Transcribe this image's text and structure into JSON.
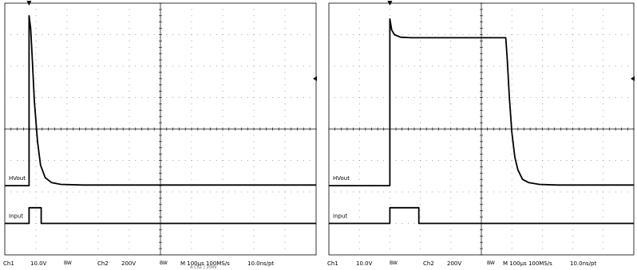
{
  "chart_data": [
    {
      "type": "line",
      "title": "",
      "xlabel": "",
      "ylabel": "",
      "divisions": {
        "x": 10,
        "y": 8
      },
      "xlim": [
        0,
        10
      ],
      "ylim": [
        0,
        8
      ],
      "grid": true,
      "trigger_marker": {
        "x": 0.78
      },
      "right_marker": {
        "y": 5.6
      },
      "series": [
        {
          "name": "HVout",
          "x": [
            0,
            0.78,
            0.78,
            0.83,
            0.88,
            0.95,
            1.05,
            1.15,
            1.3,
            1.5,
            1.8,
            2.5,
            10
          ],
          "y": [
            2.2,
            2.2,
            7.6,
            7.2,
            6.3,
            4.9,
            3.6,
            2.85,
            2.45,
            2.3,
            2.24,
            2.22,
            2.22
          ]
        },
        {
          "name": "Input",
          "x": [
            0,
            0.78,
            0.78,
            1.17,
            1.17,
            10
          ],
          "y": [
            1.0,
            1.0,
            1.5,
            1.5,
            1.0,
            1.0
          ]
        }
      ],
      "trace_labels": [
        {
          "series": "HVout",
          "text": "HVout"
        },
        {
          "series": "Input",
          "text": "Input"
        }
      ],
      "status": {
        "ch1": "Ch1",
        "ch1_scale": "10.0V",
        "bw1": "BW",
        "ch2": "Ch2",
        "ch2_scale": "200V",
        "bw2": "BW",
        "timebase": "M  100µs  100MS/s",
        "resolution": "10.0ns/pt",
        "overlap": "A  Ch2  ∫  204V"
      }
    },
    {
      "type": "line",
      "title": "",
      "xlabel": "",
      "ylabel": "",
      "divisions": {
        "x": 10,
        "y": 8
      },
      "xlim": [
        0,
        10
      ],
      "ylim": [
        0,
        8
      ],
      "grid": true,
      "trigger_marker": {
        "x": 2.0
      },
      "right_marker": {
        "y": 5.6
      },
      "series": [
        {
          "name": "HVout",
          "x": [
            0,
            2.0,
            2.0,
            2.06,
            2.15,
            2.35,
            2.7,
            3.2,
            5.8,
            5.85,
            5.92,
            6.0,
            6.1,
            6.2,
            6.35,
            6.55,
            6.9,
            7.5,
            10
          ],
          "y": [
            2.2,
            2.2,
            7.5,
            7.15,
            7.0,
            6.92,
            6.9,
            6.9,
            6.9,
            6.2,
            5.0,
            3.9,
            3.1,
            2.7,
            2.4,
            2.3,
            2.24,
            2.22,
            2.22
          ]
        },
        {
          "name": "Input",
          "x": [
            0,
            2.0,
            2.0,
            2.95,
            2.95,
            10
          ],
          "y": [
            1.0,
            1.0,
            1.5,
            1.5,
            1.0,
            1.0
          ]
        }
      ],
      "trace_labels": [
        {
          "series": "HVout",
          "text": "HVout"
        },
        {
          "series": "Input",
          "text": "Input"
        }
      ],
      "status": {
        "ch1": "Ch1",
        "ch1_scale": "10.0V",
        "bw1": "BW",
        "ch2": "Ch2",
        "ch2_scale": "200V",
        "bw2": "BW",
        "timebase": "M 100µs  100MS/s",
        "resolution": "10.0ns/pt"
      }
    }
  ]
}
